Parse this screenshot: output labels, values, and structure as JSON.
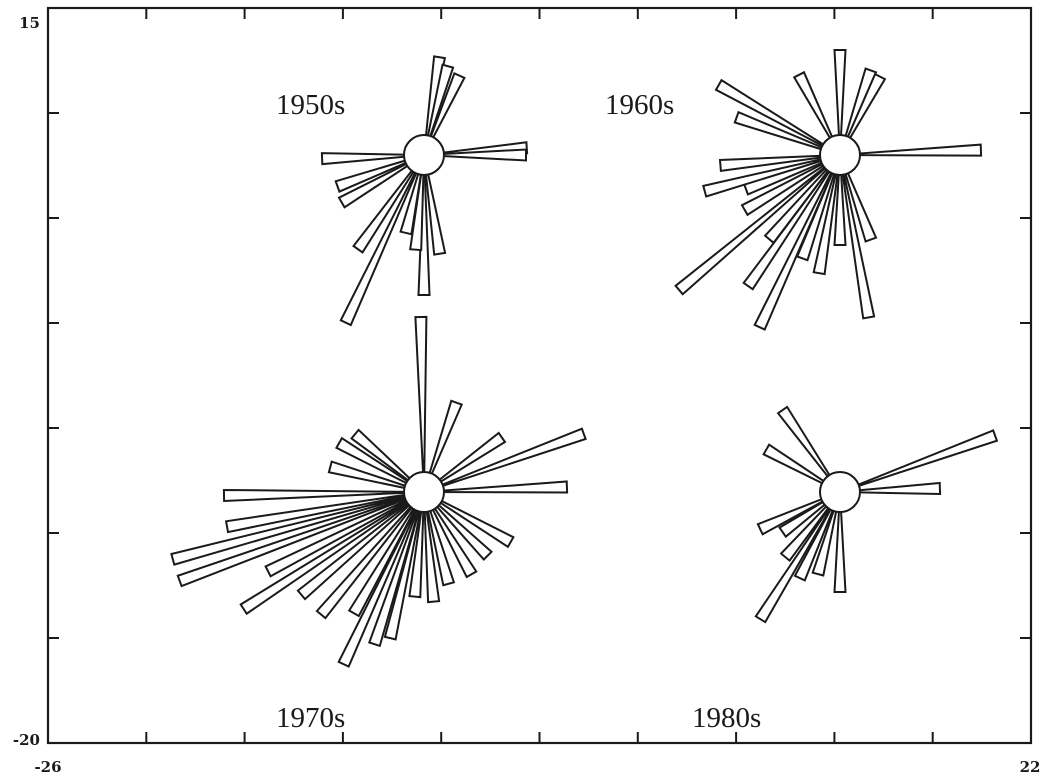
{
  "chart_data": {
    "type": "rose",
    "axes": {
      "x_tick_labels": [
        "-26",
        "22"
      ],
      "y_tick_labels": [
        "15",
        "-20"
      ]
    },
    "panels": [
      {
        "label": "1950s",
        "petals": [
          {
            "dir": 9,
            "len": 99
          },
          {
            "dir": 15,
            "len": 92
          },
          {
            "dir": 24,
            "len": 87
          },
          {
            "dir": 86,
            "len": 103
          },
          {
            "dir": 90,
            "len": 102
          },
          {
            "dir": 171,
            "len": 100
          },
          {
            "dir": 180,
            "len": 140
          },
          {
            "dir": 185,
            "len": 95
          },
          {
            "dir": 193,
            "len": 80
          },
          {
            "dir": 205,
            "len": 185
          },
          {
            "dir": 215,
            "len": 115
          },
          {
            "dir": 240,
            "len": 95
          },
          {
            "dir": 250,
            "len": 92
          },
          {
            "dir": 268,
            "len": 102
          }
        ]
      },
      {
        "label": "1960s",
        "petals": [
          {
            "dir": 0,
            "len": 105
          },
          {
            "dir": 20,
            "len": 90
          },
          {
            "dir": 27,
            "len": 88
          },
          {
            "dir": 88,
            "len": 141
          },
          {
            "dir": 160,
            "len": 90
          },
          {
            "dir": 170,
            "len": 165
          },
          {
            "dir": 180,
            "len": 90
          },
          {
            "dir": 190,
            "len": 120
          },
          {
            "dir": 200,
            "len": 110
          },
          {
            "dir": 205,
            "len": 190
          },
          {
            "dir": 215,
            "len": 160
          },
          {
            "dir": 220,
            "len": 110
          },
          {
            "dir": 230,
            "len": 210
          },
          {
            "dir": 240,
            "len": 110
          },
          {
            "dir": 250,
            "len": 100
          },
          {
            "dir": 255,
            "len": 140
          },
          {
            "dir": 265,
            "len": 120
          },
          {
            "dir": 290,
            "len": 110
          },
          {
            "dir": 300,
            "len": 140
          },
          {
            "dir": 333,
            "len": 90
          }
        ]
      },
      {
        "label": "1970s",
        "petals": [
          {
            "dir": -1,
            "len": 175
          },
          {
            "dir": 20,
            "len": 95
          },
          {
            "dir": 55,
            "len": 95
          },
          {
            "dir": 70,
            "len": 170
          },
          {
            "dir": 88,
            "len": 143
          },
          {
            "dir": 120,
            "len": 100
          },
          {
            "dir": 135,
            "len": 90
          },
          {
            "dir": 150,
            "len": 95
          },
          {
            "dir": 165,
            "len": 95
          },
          {
            "dir": 175,
            "len": 110
          },
          {
            "dir": 185,
            "len": 105
          },
          {
            "dir": 193,
            "len": 150
          },
          {
            "dir": 198,
            "len": 160
          },
          {
            "dir": 205,
            "len": 190
          },
          {
            "dir": 210,
            "len": 140
          },
          {
            "dir": 220,
            "len": 160
          },
          {
            "dir": 230,
            "len": 160
          },
          {
            "dir": 237,
            "len": 215
          },
          {
            "dir": 243,
            "len": 175
          },
          {
            "dir": 250,
            "len": 260
          },
          {
            "dir": 255,
            "len": 260
          },
          {
            "dir": 260,
            "len": 200
          },
          {
            "dir": 269,
            "len": 200
          },
          {
            "dir": 285,
            "len": 97
          },
          {
            "dir": 300,
            "len": 98
          },
          {
            "dir": 310,
            "len": 90
          }
        ]
      },
      {
        "label": "1980s",
        "petals": [
          {
            "dir": 70,
            "len": 165
          },
          {
            "dir": 88,
            "len": 100
          },
          {
            "dir": 180,
            "len": 100
          },
          {
            "dir": 195,
            "len": 85
          },
          {
            "dir": 205,
            "len": 95
          },
          {
            "dir": 212,
            "len": 150
          },
          {
            "dir": 220,
            "len": 85
          },
          {
            "dir": 235,
            "len": 70
          },
          {
            "dir": 245,
            "len": 88
          },
          {
            "dir": 300,
            "len": 85
          },
          {
            "dir": 325,
            "len": 100
          }
        ]
      }
    ]
  }
}
